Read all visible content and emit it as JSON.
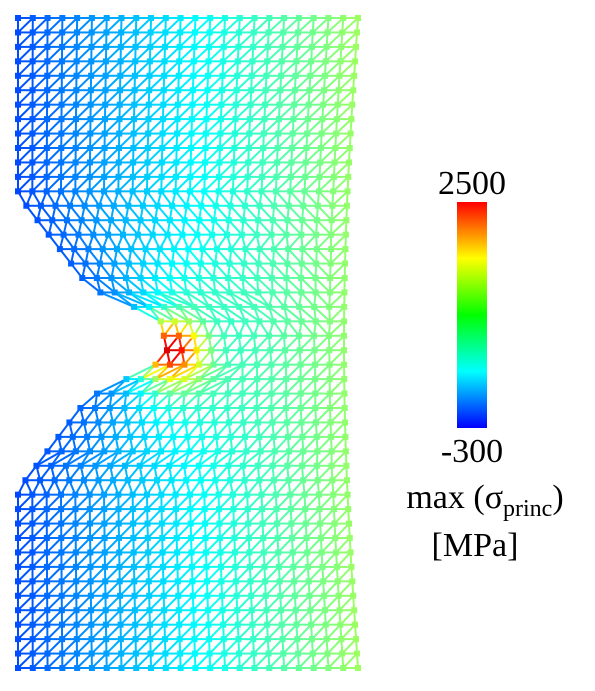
{
  "colorbar": {
    "max": "2500",
    "min": "-300",
    "label_main": "max (σ",
    "label_sub": "princ",
    "label_close": ")",
    "unit": "[MPa]"
  }
}
